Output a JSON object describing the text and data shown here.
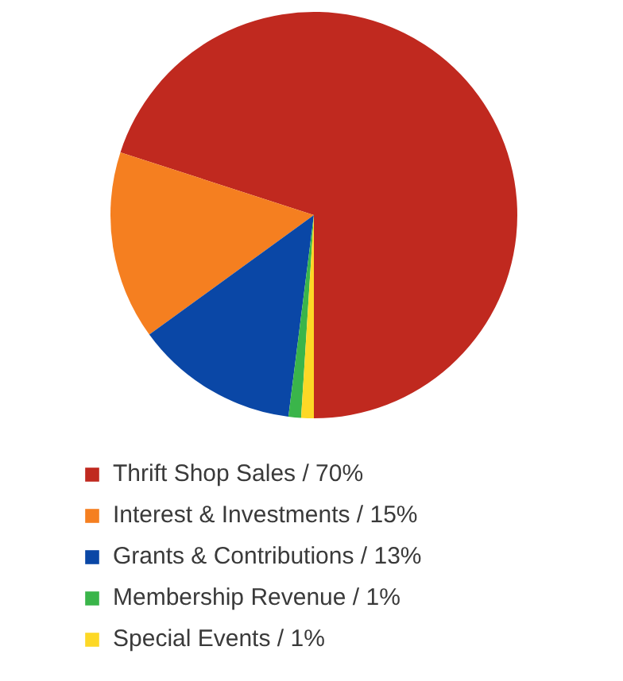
{
  "chart_data": {
    "type": "pie",
    "categories": [
      "Thrift Shop Sales / 70%",
      "Interest & Investments / 15%",
      "Grants & Contributions / 13%",
      "Membership Revenue / 1%",
      "Special Events / 1%"
    ],
    "values": [
      70,
      15,
      13,
      1,
      1
    ],
    "colors": [
      "#c0291f",
      "#f57f20",
      "#0a47a6",
      "#3ab54a",
      "#fdd826"
    ],
    "legend": "bottom"
  }
}
